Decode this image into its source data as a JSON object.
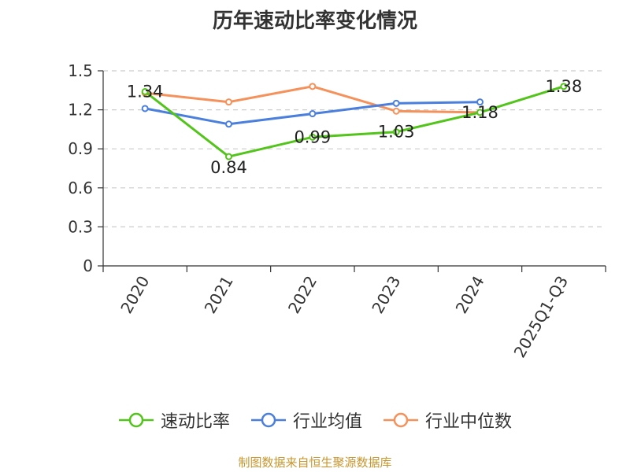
{
  "title": "历年速动比率变化情况",
  "source": "制图数据来自恒生聚源数据库",
  "colors": {
    "quick_ratio": "#52c41a",
    "industry_avg": "#4a7fdd",
    "industry_median": "#f5915b",
    "source_text": "#c8962e",
    "axis": "#333333",
    "grid": "#cccccc"
  },
  "chart_data": {
    "type": "line",
    "title": "历年速动比率变化情况",
    "xlabel": "",
    "ylabel": "",
    "categories": [
      "2020",
      "2021",
      "2022",
      "2023",
      "2024",
      "2025Q1-Q3"
    ],
    "y_ticks": [
      "0",
      "0.3",
      "0.6",
      "0.9",
      "1.2",
      "1.5"
    ],
    "ylim": [
      0,
      1.5
    ],
    "grid": true,
    "legend_position": "bottom",
    "series": [
      {
        "name": "速动比率",
        "color_key": "quick_ratio",
        "values": [
          1.34,
          0.84,
          0.99,
          1.03,
          1.18,
          1.38
        ],
        "labels": [
          "1.34",
          "0.84",
          "0.99",
          "1.03",
          "1.18",
          "1.38"
        ]
      },
      {
        "name": "行业均值",
        "color_key": "industry_avg",
        "values": [
          1.21,
          1.09,
          1.17,
          1.25,
          1.26,
          null
        ]
      },
      {
        "name": "行业中位数",
        "color_key": "industry_median",
        "values": [
          1.33,
          1.26,
          1.38,
          1.19,
          1.18,
          null
        ]
      }
    ]
  }
}
